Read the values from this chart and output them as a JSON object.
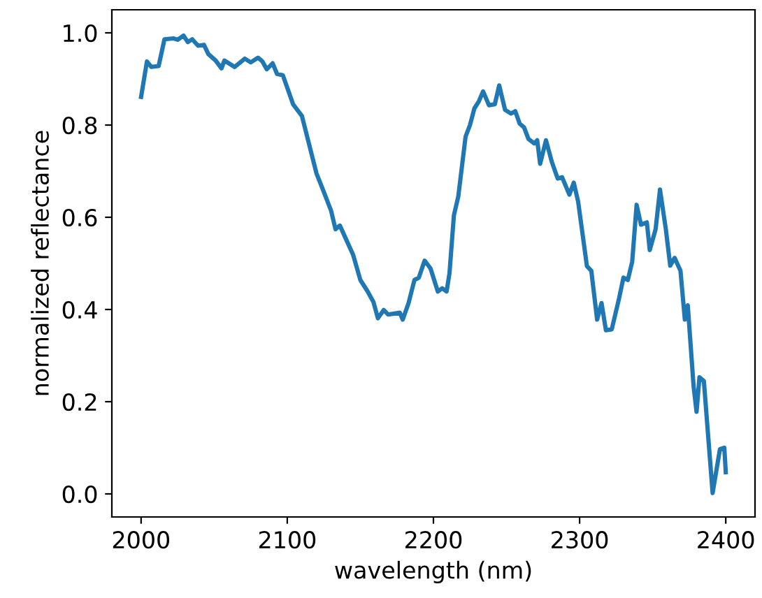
{
  "chart_data": {
    "type": "line",
    "xlabel": "wavelength (nm)",
    "ylabel": "normalized reflectance",
    "xlim": [
      1980,
      2420
    ],
    "ylim": [
      -0.05,
      1.05
    ],
    "xticks": [
      2000,
      2100,
      2200,
      2300,
      2400
    ],
    "yticks": [
      {
        "value": 0,
        "label": "0.0"
      },
      {
        "value": 0.2,
        "label": "0.2"
      },
      {
        "value": 0.4,
        "label": "0.4"
      },
      {
        "value": 0.6,
        "label": "0.6"
      },
      {
        "value": 0.8,
        "label": "0.8"
      },
      {
        "value": 1,
        "label": "1.0"
      }
    ],
    "grid": false,
    "series": [
      {
        "color": "#1f77b4",
        "line_style": "solid",
        "x": [
          2000,
          2004,
          2007,
          2012,
          2016,
          2022,
          2025,
          2029,
          2032,
          2035,
          2039,
          2043,
          2046,
          2051,
          2055,
          2057,
          2064,
          2071,
          2075,
          2080,
          2083,
          2086,
          2090,
          2093,
          2097,
          2104,
          2110,
          2120,
          2125,
          2130,
          2133,
          2136,
          2145,
          2150,
          2155,
          2159,
          2162,
          2166,
          2169,
          2177,
          2179,
          2183,
          2187,
          2190,
          2194,
          2198,
          2203,
          2206,
          2209,
          2211,
          2214,
          2217,
          2222,
          2225,
          2228,
          2231,
          2234,
          2238,
          2242,
          2245,
          2249,
          2253,
          2256,
          2259,
          2262,
          2265,
          2269,
          2271,
          2273,
          2277,
          2281,
          2285,
          2288,
          2293,
          2296,
          2299,
          2305,
          2308,
          2312,
          2315,
          2318,
          2322,
          2327,
          2330,
          2333,
          2336,
          2339,
          2342,
          2346,
          2348,
          2352,
          2355,
          2359,
          2362,
          2365,
          2369,
          2372,
          2374,
          2378,
          2380,
          2382,
          2385,
          2391,
          2396,
          2399,
          2400
        ],
        "values": [
          0.861,
          0.938,
          0.926,
          0.928,
          0.986,
          0.988,
          0.985,
          0.994,
          0.98,
          0.986,
          0.972,
          0.974,
          0.954,
          0.94,
          0.923,
          0.94,
          0.926,
          0.944,
          0.936,
          0.946,
          0.938,
          0.921,
          0.934,
          0.911,
          0.908,
          0.845,
          0.82,
          0.695,
          0.655,
          0.614,
          0.574,
          0.582,
          0.519,
          0.464,
          0.439,
          0.416,
          0.381,
          0.399,
          0.389,
          0.393,
          0.378,
          0.414,
          0.464,
          0.469,
          0.506,
          0.489,
          0.439,
          0.446,
          0.439,
          0.479,
          0.604,
          0.645,
          0.775,
          0.8,
          0.836,
          0.851,
          0.873,
          0.843,
          0.845,
          0.886,
          0.833,
          0.825,
          0.83,
          0.803,
          0.795,
          0.77,
          0.76,
          0.767,
          0.716,
          0.767,
          0.72,
          0.684,
          0.687,
          0.649,
          0.675,
          0.634,
          0.494,
          0.484,
          0.378,
          0.414,
          0.355,
          0.357,
          0.424,
          0.469,
          0.464,
          0.504,
          0.627,
          0.584,
          0.589,
          0.529,
          0.574,
          0.66,
          0.574,
          0.495,
          0.512,
          0.484,
          0.378,
          0.409,
          0.233,
          0.178,
          0.253,
          0.245,
          0.002,
          0.097,
          0.1,
          0.047
        ]
      }
    ]
  }
}
